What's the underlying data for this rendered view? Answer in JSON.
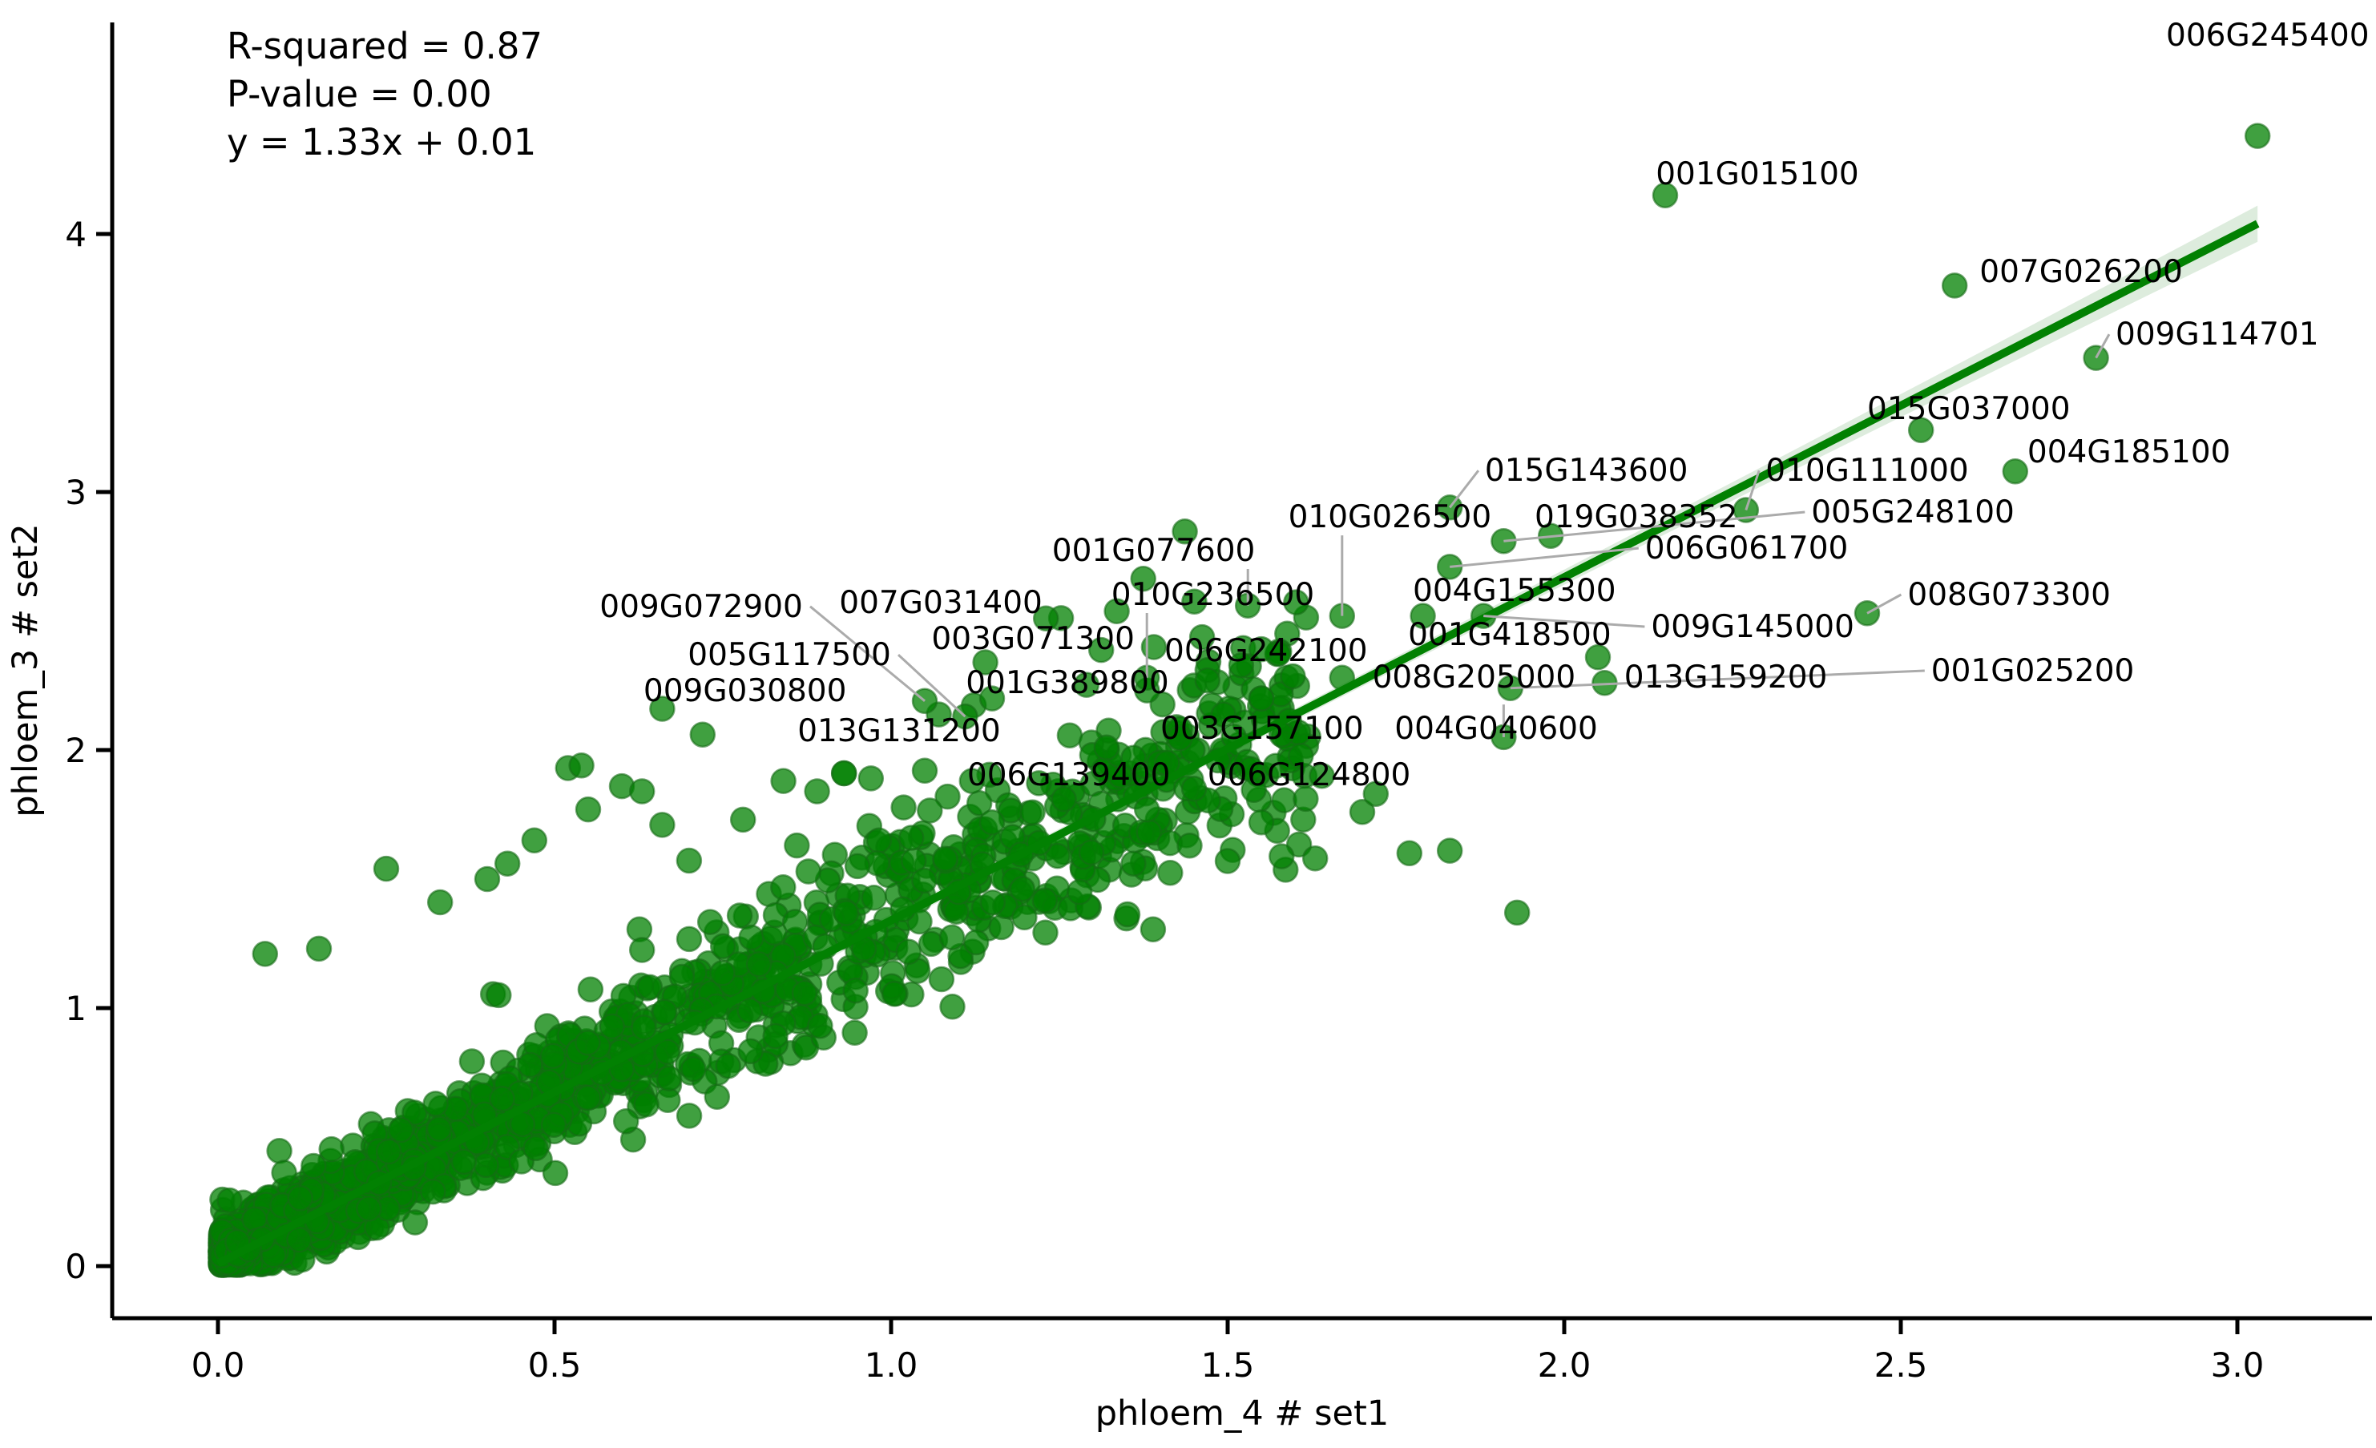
{
  "chart_data": {
    "type": "scatter",
    "title": "",
    "stats_lines": [
      "R-squared = 0.87",
      "P-value = 0.00",
      "y = 1.33x + 0.01"
    ],
    "xlabel": "phloem_4 # set1",
    "ylabel": "phloem_3 # set2",
    "x_ticks": [
      {
        "v": 0.0,
        "label": "0.0"
      },
      {
        "v": 0.5,
        "label": "0.5"
      },
      {
        "v": 1.0,
        "label": "1.0"
      },
      {
        "v": 1.5,
        "label": "1.5"
      },
      {
        "v": 2.0,
        "label": "2.0"
      },
      {
        "v": 2.5,
        "label": "2.5"
      },
      {
        "v": 3.0,
        "label": "3.0"
      }
    ],
    "y_ticks": [
      {
        "v": 0,
        "label": "0"
      },
      {
        "v": 1,
        "label": "1"
      },
      {
        "v": 2,
        "label": "2"
      },
      {
        "v": 3,
        "label": "3"
      },
      {
        "v": 4,
        "label": "4"
      }
    ],
    "xlim": [
      -0.157,
      3.2
    ],
    "ylim": [
      -0.2,
      4.81
    ],
    "grid": false,
    "legend": null,
    "regression": {
      "slope": 1.33,
      "intercept": 0.01,
      "r_squared": 0.87,
      "p_value": 0.0,
      "x_start": 0.0,
      "x_end": 3.03
    },
    "colors": {
      "point_fill": "#008000",
      "point_edge": "#156b15",
      "line": "#028102",
      "band": "#2e8b2e",
      "leader": "#ababab",
      "text": "#000000"
    },
    "labeled_points": [
      {
        "label": "006G245400",
        "x": 3.03,
        "y": 4.38,
        "lx": 2.894,
        "ly": 4.73,
        "noleader": true
      },
      {
        "label": "001G015100",
        "x": 2.15,
        "y": 4.15,
        "lx": 2.136,
        "ly": 4.193
      },
      {
        "label": "007G026200",
        "x": 2.58,
        "y": 3.8,
        "lx": 2.617,
        "ly": 3.814
      },
      {
        "label": "009G114701",
        "x": 2.79,
        "y": 3.52,
        "lx": 2.819,
        "ly": 3.571
      },
      {
        "label": "015G037000",
        "x": 2.53,
        "y": 3.24,
        "lx": 2.45,
        "ly": 3.283
      },
      {
        "label": "004G185100",
        "x": 2.67,
        "y": 3.08,
        "lx": 2.688,
        "ly": 3.115
      },
      {
        "label": "010G111000",
        "x": 2.27,
        "y": 2.93,
        "lx": 2.299,
        "ly": 3.043
      },
      {
        "label": "015G143600",
        "x": 1.83,
        "y": 2.94,
        "lx": 1.882,
        "ly": 3.043
      },
      {
        "label": "010G026500",
        "x": 1.67,
        "y": 2.52,
        "lx": 1.59,
        "ly": 2.863
      },
      {
        "label": "019G038352",
        "x": 1.98,
        "y": 2.83,
        "lx": 1.956,
        "ly": 2.863
      },
      {
        "label": "005G248100",
        "x": 1.91,
        "y": 2.81,
        "lx": 2.367,
        "ly": 2.882
      },
      {
        "label": "006G061700",
        "x": 1.83,
        "y": 2.71,
        "lx": 2.12,
        "ly": 2.742
      },
      {
        "label": "001G077600",
        "x": 1.53,
        "y": 2.56,
        "lx": 1.239,
        "ly": 2.733
      },
      {
        "label": "010G236500",
        "x": 1.38,
        "y": 2.28,
        "lx": 1.327,
        "ly": 2.562
      },
      {
        "label": "009G072900",
        "x": 1.05,
        "y": 2.19,
        "lx": 0.567,
        "ly": 2.516
      },
      {
        "label": "007G031400",
        "x": 1.23,
        "y": 2.51,
        "lx": 0.923,
        "ly": 2.531
      },
      {
        "label": "003G071300",
        "x": 1.14,
        "y": 2.34,
        "lx": 1.06,
        "ly": 2.391
      },
      {
        "label": "006G242100",
        "x": 1.47,
        "y": 2.27,
        "lx": 1.406,
        "ly": 2.345
      },
      {
        "label": "005G117500",
        "x": 1.11,
        "y": 2.13,
        "lx": 0.698,
        "ly": 2.329
      },
      {
        "label": "001G389800",
        "x": 1.15,
        "y": 2.2,
        "lx": 1.111,
        "ly": 2.22
      },
      {
        "label": "009G030800",
        "x": 0.66,
        "y": 2.16,
        "lx": 0.632,
        "ly": 2.189
      },
      {
        "label": "013G131200",
        "x": 0.93,
        "y": 1.91,
        "lx": 0.861,
        "ly": 2.034
      },
      {
        "label": "004G155300",
        "x": 1.79,
        "y": 2.52,
        "lx": 1.775,
        "ly": 2.578
      },
      {
        "label": "001G418500",
        "x": 2.05,
        "y": 2.36,
        "lx": 1.768,
        "ly": 2.407
      },
      {
        "label": "009G145000",
        "x": 1.88,
        "y": 2.52,
        "lx": 2.129,
        "ly": 2.438
      },
      {
        "label": "008G073300",
        "x": 2.45,
        "y": 2.53,
        "lx": 2.51,
        "ly": 2.562
      },
      {
        "label": "001G025200",
        "x": 1.92,
        "y": 2.24,
        "lx": 2.545,
        "ly": 2.267
      },
      {
        "label": "008G205000",
        "x": 1.67,
        "y": 2.28,
        "lx": 1.715,
        "ly": 2.242
      },
      {
        "label": "013G159200",
        "x": 2.06,
        "y": 2.26,
        "lx": 2.089,
        "ly": 2.242
      },
      {
        "label": "003G157100",
        "x": 1.55,
        "y": 2.2,
        "lx": 1.4,
        "ly": 2.043
      },
      {
        "label": "004G040600",
        "x": 1.91,
        "y": 2.05,
        "lx": 1.748,
        "ly": 2.043
      },
      {
        "label": "006G139400",
        "x": 1.36,
        "y": 1.97,
        "lx": 1.113,
        "ly": 1.863
      },
      {
        "label": "006G124800",
        "x": 1.72,
        "y": 1.83,
        "lx": 1.47,
        "ly": 1.863
      }
    ],
    "extra_points": [
      [
        0.07,
        1.21
      ],
      [
        0.15,
        1.23
      ],
      [
        0.25,
        1.54
      ],
      [
        0.33,
        1.41
      ],
      [
        0.4,
        1.5
      ],
      [
        0.43,
        1.56
      ],
      [
        0.47,
        1.65
      ],
      [
        0.52,
        1.93
      ],
      [
        0.55,
        1.77
      ],
      [
        0.6,
        1.86
      ],
      [
        0.63,
        1.84
      ],
      [
        0.66,
        1.71
      ],
      [
        0.72,
        2.06
      ],
      [
        0.78,
        1.73
      ],
      [
        0.84,
        1.88
      ],
      [
        0.89,
        1.84
      ],
      [
        0.93,
        1.91
      ],
      [
        0.97,
        1.89
      ],
      [
        1.03,
        1.66
      ],
      [
        1.1,
        1.45
      ],
      [
        1.15,
        1.72
      ],
      [
        1.22,
        1.64
      ],
      [
        1.28,
        1.45
      ],
      [
        1.32,
        2.01
      ],
      [
        1.36,
        1.56
      ],
      [
        1.41,
        1.95
      ],
      [
        1.45,
        2.25
      ],
      [
        1.47,
        2.31
      ],
      [
        1.5,
        1.57
      ],
      [
        1.55,
        1.72
      ],
      [
        1.63,
        1.58
      ],
      [
        1.7,
        1.76
      ],
      [
        1.77,
        1.6
      ],
      [
        1.83,
        1.61
      ],
      [
        1.93,
        1.37
      ],
      [
        1.55,
        2.2
      ],
      [
        0.54,
        1.94
      ],
      [
        1.05,
        1.92
      ],
      [
        1.12,
        1.88
      ],
      [
        0.86,
        1.63
      ],
      [
        0.95,
        1.55
      ],
      [
        1.58,
        2.06
      ],
      [
        1.64,
        1.9
      ],
      [
        1.45,
        1.85
      ],
      [
        1.38,
        1.77
      ]
    ],
    "cloud": {
      "count": 1950,
      "seed": 1234,
      "x_max": 1.62,
      "description": "dense unlabeled scatter mass near origin along y=1.33x"
    }
  }
}
